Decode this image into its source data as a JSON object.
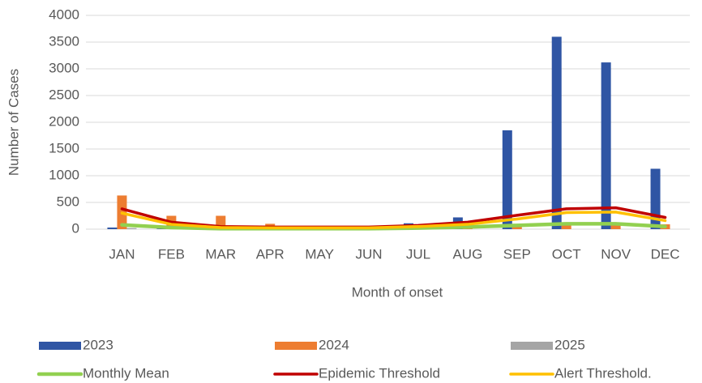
{
  "chart_data": {
    "type": "bar",
    "y_label": "Number of Cases",
    "x_label": "Month of onset",
    "categories": [
      "JAN",
      "FEB",
      "MAR",
      "APR",
      "MAY",
      "JUN",
      "JUL",
      "AUG",
      "SEP",
      "OCT",
      "NOV",
      "DEC"
    ],
    "ylim": [
      0,
      4000
    ],
    "yticks": [
      0,
      500,
      1000,
      1500,
      2000,
      2500,
      3000,
      3500,
      4000
    ],
    "grid": true,
    "legend": "bottom",
    "series": [
      {
        "name": "2023",
        "type": "bar",
        "color": "#2f55a4",
        "values": [
          30,
          10,
          10,
          5,
          5,
          10,
          110,
          220,
          1850,
          3600,
          3120,
          1130
        ]
      },
      {
        "name": "2024",
        "type": "bar",
        "color": "#ed7d31",
        "values": [
          630,
          250,
          250,
          100,
          50,
          40,
          80,
          100,
          60,
          80,
          100,
          90
        ]
      },
      {
        "name": "2025",
        "type": "bar",
        "color": "#a5a5a5",
        "values": [
          20,
          null,
          null,
          null,
          null,
          null,
          null,
          null,
          null,
          null,
          null,
          null
        ]
      },
      {
        "name": "Monthly Mean",
        "type": "line",
        "color": "#92d050",
        "values": [
          80,
          30,
          10,
          10,
          10,
          10,
          20,
          40,
          70,
          100,
          100,
          50
        ]
      },
      {
        "name": "Epidemic Threshold",
        "type": "line",
        "color": "#c00000",
        "values": [
          380,
          130,
          50,
          40,
          40,
          40,
          70,
          130,
          260,
          380,
          400,
          220
        ]
      },
      {
        "name": "Alert Threshold.",
        "type": "line",
        "color": "#ffc000",
        "values": [
          300,
          90,
          30,
          25,
          25,
          25,
          50,
          90,
          190,
          310,
          320,
          160
        ]
      }
    ]
  }
}
